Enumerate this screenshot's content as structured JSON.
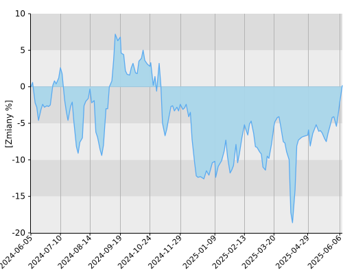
{
  "chart_data": {
    "type": "area",
    "title": "",
    "xlabel": "",
    "ylabel": "[Zmiany %]",
    "ylim": [
      -20,
      10
    ],
    "yticks": [
      -20,
      -15,
      -10,
      -5,
      0,
      5,
      10
    ],
    "xticks": [
      "2024-06-05",
      "2024-07-10",
      "2024-08-14",
      "2024-09-19",
      "2024-10-24",
      "2024-11-29",
      "2025-01-09",
      "2025-02-13",
      "2025-03-20",
      "2025-04-29",
      "2025-06-06"
    ],
    "x_end": "2025-06-09",
    "grid": true,
    "legend": "none",
    "colors": {
      "line": "#5aaaf0",
      "fill_positive": "#b6dff0",
      "fill_negative": "#a9d6ea",
      "band_dark": "#dcdcdc",
      "band_light": "#ececec",
      "gridline": "#b4b4b4",
      "axis": "#000000"
    },
    "series": [
      {
        "x": [
          "2024-06-05",
          "2024-06-07",
          "2024-06-10",
          "2024-06-12",
          "2024-06-14",
          "2024-06-17",
          "2024-06-19",
          "2024-06-21",
          "2024-06-24",
          "2024-06-26",
          "2024-06-28",
          "2024-07-01",
          "2024-07-03",
          "2024-07-05",
          "2024-07-08",
          "2024-07-10",
          "2024-07-12",
          "2024-07-15",
          "2024-07-17",
          "2024-07-19",
          "2024-07-22",
          "2024-07-24",
          "2024-07-26",
          "2024-07-29",
          "2024-07-31",
          "2024-08-02",
          "2024-08-05",
          "2024-08-07",
          "2024-08-09",
          "2024-08-12",
          "2024-08-14",
          "2024-08-16",
          "2024-08-19",
          "2024-08-21",
          "2024-08-23",
          "2024-08-26",
          "2024-08-28",
          "2024-08-30",
          "2024-09-02",
          "2024-09-04",
          "2024-09-06",
          "2024-09-09",
          "2024-09-11",
          "2024-09-13",
          "2024-09-16",
          "2024-09-19",
          "2024-09-20",
          "2024-09-23",
          "2024-09-25",
          "2024-09-27",
          "2024-09-30",
          "2024-10-02",
          "2024-10-04",
          "2024-10-07",
          "2024-10-09",
          "2024-10-11",
          "2024-10-14",
          "2024-10-16",
          "2024-10-18",
          "2024-10-21",
          "2024-10-24",
          "2024-10-25",
          "2024-10-28",
          "2024-10-30",
          "2024-11-01",
          "2024-11-04",
          "2024-11-06",
          "2024-11-08",
          "2024-11-11",
          "2024-11-13",
          "2024-11-15",
          "2024-11-18",
          "2024-11-20",
          "2024-11-22",
          "2024-11-25",
          "2024-11-27",
          "2024-11-29",
          "2024-12-02",
          "2024-12-04",
          "2024-12-06",
          "2024-12-09",
          "2024-12-11",
          "2024-12-13",
          "2024-12-16",
          "2024-12-18",
          "2024-12-20",
          "2024-12-23",
          "2024-12-27",
          "2024-12-30",
          "2025-01-02",
          "2025-01-06",
          "2025-01-09",
          "2025-01-10",
          "2025-01-13",
          "2025-01-15",
          "2025-01-17",
          "2025-01-20",
          "2025-01-22",
          "2025-01-24",
          "2025-01-27",
          "2025-01-29",
          "2025-01-31",
          "2025-02-03",
          "2025-02-05",
          "2025-02-07",
          "2025-02-10",
          "2025-02-13",
          "2025-02-14",
          "2025-02-17",
          "2025-02-19",
          "2025-02-21",
          "2025-02-24",
          "2025-02-26",
          "2025-02-28",
          "2025-03-03",
          "2025-03-05",
          "2025-03-07",
          "2025-03-10",
          "2025-03-12",
          "2025-03-14",
          "2025-03-17",
          "2025-03-20",
          "2025-03-21",
          "2025-03-24",
          "2025-03-26",
          "2025-03-28",
          "2025-03-31",
          "2025-04-02",
          "2025-04-04",
          "2025-04-07",
          "2025-04-09",
          "2025-04-11",
          "2025-04-14",
          "2025-04-16",
          "2025-04-18",
          "2025-04-22",
          "2025-04-24",
          "2025-04-29",
          "2025-04-30",
          "2025-05-02",
          "2025-05-05",
          "2025-05-07",
          "2025-05-09",
          "2025-05-12",
          "2025-05-14",
          "2025-05-16",
          "2025-05-19",
          "2025-05-21",
          "2025-05-23",
          "2025-05-26",
          "2025-05-28",
          "2025-05-30",
          "2025-06-02",
          "2025-06-04",
          "2025-06-06",
          "2025-06-09"
        ],
        "values": [
          0.0,
          0.6,
          -2.2,
          -2.8,
          -4.6,
          -3.1,
          -2.4,
          -2.8,
          -2.6,
          -2.7,
          -2.5,
          0.2,
          0.8,
          0.4,
          1.2,
          2.6,
          1.8,
          -1.8,
          -3.4,
          -4.6,
          -2.7,
          -2.1,
          -4.8,
          -8.2,
          -9.1,
          -7.6,
          -7.0,
          -2.6,
          -2.0,
          -1.6,
          -0.3,
          -2.2,
          -1.9,
          -6.2,
          -6.9,
          -8.6,
          -9.4,
          -8.0,
          -3.0,
          -3.0,
          0.0,
          0.8,
          3.6,
          7.2,
          6.3,
          6.8,
          4.6,
          4.4,
          2.2,
          1.7,
          1.6,
          2.6,
          3.2,
          1.9,
          1.8,
          3.5,
          3.9,
          5.0,
          3.6,
          3.1,
          2.8,
          3.3,
          0.2,
          1.4,
          -0.6,
          3.2,
          0.2,
          -5.0,
          -6.7,
          -5.8,
          -4.5,
          -2.7,
          -2.6,
          -3.3,
          -2.8,
          -3.3,
          -2.4,
          -3.1,
          -2.9,
          -2.4,
          -4.1,
          -3.5,
          -7.2,
          -10.4,
          -12.2,
          -12.4,
          -12.3,
          -12.6,
          -11.5,
          -12.1,
          -10.4,
          -10.2,
          -12.4,
          -10.9,
          -10.5,
          -10.1,
          -8.8,
          -7.3,
          -9.6,
          -11.8,
          -11.4,
          -10.8,
          -7.9,
          -10.4,
          -9.2,
          -7.0,
          -5.2,
          -5.6,
          -6.6,
          -5.1,
          -4.7,
          -6.4,
          -8.2,
          -8.3,
          -8.9,
          -9.2,
          -11.0,
          -11.4,
          -9.5,
          -9.8,
          -7.9,
          -5.4,
          -4.8,
          -4.2,
          -4.1,
          -5.4,
          -7.5,
          -7.7,
          -8.9,
          -10.0,
          -17.2,
          -18.6,
          -14.1,
          -8.1,
          -7.3,
          -6.9,
          -6.8,
          -6.6,
          -5.9,
          -8.1,
          -6.4,
          -5.8,
          -5.2,
          -6.1,
          -6.0,
          -6.3,
          -7.1,
          -7.5,
          -6.4,
          -5.1,
          -4.2,
          -4.1,
          -5.4,
          -3.9,
          -2.1,
          0.2
        ]
      }
    ]
  }
}
